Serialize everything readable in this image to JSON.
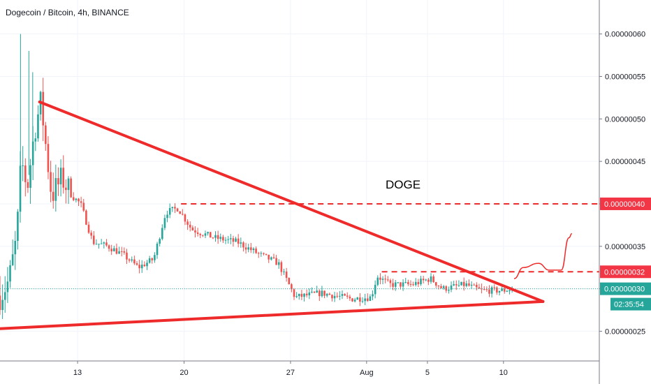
{
  "header": {
    "title": "Dogecoin / Bitcoin, 4h, BINANCE"
  },
  "chart_data": {
    "type": "candlestick",
    "title": "Dogecoin / Bitcoin, 4h, BINANCE",
    "symbol": "Dogecoin / Bitcoin",
    "interval": "4h",
    "exchange": "BINANCE",
    "x_day_range": [
      7.9,
      16.5
    ],
    "x_ticks": [
      {
        "day": 13,
        "label": "13"
      },
      {
        "day": 20,
        "label": "20"
      },
      {
        "day": 27,
        "label": "27"
      },
      {
        "day": 32,
        "label": "Aug"
      },
      {
        "day": 36,
        "label": "5"
      },
      {
        "day": 41,
        "label": "10"
      }
    ],
    "ylim": [
      2.15e-07,
      6.4e-07
    ],
    "y_ticks": [
      {
        "value": 2.5e-07,
        "label": "0.00000025"
      },
      {
        "value": 3e-07,
        "label": "0.00000030"
      },
      {
        "value": 3.5e-07,
        "label": "0.00000035"
      },
      {
        "value": 4e-07,
        "label": "0.00000040"
      },
      {
        "value": 4.5e-07,
        "label": "0.00000045"
      },
      {
        "value": 5e-07,
        "label": "0.00000050"
      },
      {
        "value": 5.5e-07,
        "label": "0.00000055"
      },
      {
        "value": 6e-07,
        "label": "0.00000060"
      }
    ],
    "price_badges": [
      {
        "value": 4e-07,
        "label": "0.00000040",
        "color": "#f23645"
      },
      {
        "value": 3.2e-07,
        "label": "0.00000032",
        "color": "#f23645"
      },
      {
        "value": 3e-07,
        "label": "0.00000030",
        "color": "#26a69a"
      }
    ],
    "countdown": "02:35:54",
    "annotation": "DOGE",
    "current_price": 3e-07,
    "colors": {
      "up": "#26a69a",
      "down": "#ef5350",
      "drawing": "#ee2a2a",
      "grid": "#f0f3fa"
    },
    "trendlines": [
      {
        "name": "descending-resistance",
        "from": {
          "day": 10.5,
          "price": 5.2e-07
        },
        "to": {
          "day": 43.6,
          "price": 2.85e-07
        }
      },
      {
        "name": "ascending-support",
        "from": {
          "day": 7.9,
          "price": 2.53e-07
        },
        "to": {
          "day": 43.6,
          "price": 2.85e-07
        }
      }
    ],
    "horizontal_levels": [
      {
        "name": "resistance-040",
        "price": 4e-07,
        "from_day": 19.8
      },
      {
        "name": "resistance-032",
        "price": 3.2e-07,
        "from_day": 33.0
      }
    ],
    "projection": [
      {
        "day": 41.7,
        "price": 3.12e-07
      },
      {
        "day": 42.3,
        "price": 3.25e-07
      },
      {
        "day": 43.3,
        "price": 3.3e-07
      },
      {
        "day": 44.0,
        "price": 3.22e-07
      },
      {
        "day": 44.8,
        "price": 3.22e-07
      },
      {
        "day": 45.3,
        "price": 3.6e-07
      },
      {
        "day": 45.5,
        "price": 3.65e-07
      }
    ],
    "path_keypoints": [
      {
        "day": 7.9,
        "price": 2.92e-07
      },
      {
        "day": 8.5,
        "price": 3.1e-07
      },
      {
        "day": 9.0,
        "price": 3.6e-07
      },
      {
        "day": 9.3,
        "price": 4.5e-07
      },
      {
        "day": 9.7,
        "price": 4.2e-07
      },
      {
        "day": 10.2,
        "price": 4.9e-07
      },
      {
        "day": 10.6,
        "price": 5.2e-07
      },
      {
        "day": 10.9,
        "price": 4.7e-07
      },
      {
        "day": 11.3,
        "price": 4.1e-07
      },
      {
        "day": 12.0,
        "price": 4.3e-07
      },
      {
        "day": 12.6,
        "price": 4.1e-07
      },
      {
        "day": 13.2,
        "price": 4e-07
      },
      {
        "day": 14.0,
        "price": 3.55e-07
      },
      {
        "day": 15.0,
        "price": 3.5e-07
      },
      {
        "day": 16.0,
        "price": 3.4e-07
      },
      {
        "day": 17.0,
        "price": 3.25e-07
      },
      {
        "day": 18.0,
        "price": 3.35e-07
      },
      {
        "day": 18.8,
        "price": 3.9e-07
      },
      {
        "day": 19.6,
        "price": 3.95e-07
      },
      {
        "day": 20.5,
        "price": 3.7e-07
      },
      {
        "day": 22.0,
        "price": 3.6e-07
      },
      {
        "day": 23.5,
        "price": 3.55e-07
      },
      {
        "day": 25.0,
        "price": 3.4e-07
      },
      {
        "day": 26.2,
        "price": 3.3e-07
      },
      {
        "day": 27.3,
        "price": 2.9e-07
      },
      {
        "day": 29.0,
        "price": 2.95e-07
      },
      {
        "day": 31.0,
        "price": 2.88e-07
      },
      {
        "day": 32.3,
        "price": 2.9e-07
      },
      {
        "day": 32.7,
        "price": 3.15e-07
      },
      {
        "day": 33.5,
        "price": 3.05e-07
      },
      {
        "day": 35.0,
        "price": 3.05e-07
      },
      {
        "day": 36.2,
        "price": 3.12e-07
      },
      {
        "day": 37.0,
        "price": 3e-07
      },
      {
        "day": 38.5,
        "price": 3.05e-07
      },
      {
        "day": 39.5,
        "price": 2.98e-07
      },
      {
        "day": 41.0,
        "price": 2.98e-07
      },
      {
        "day": 41.7,
        "price": 3e-07
      }
    ]
  }
}
